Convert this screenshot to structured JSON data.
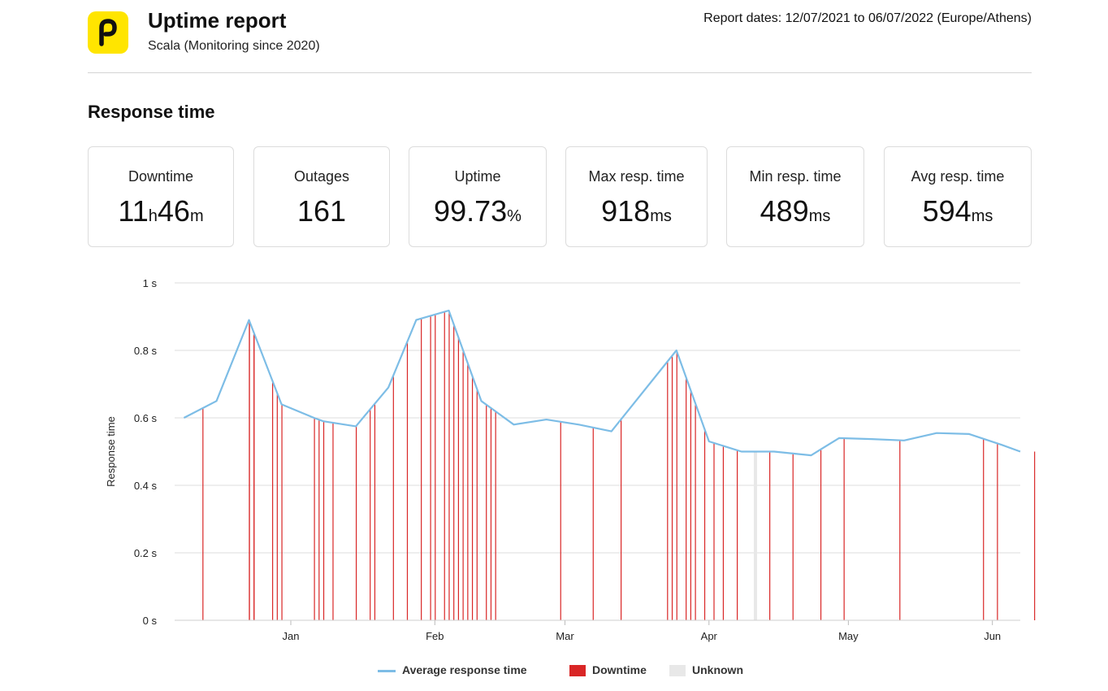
{
  "header": {
    "logo_letter": "p",
    "title": "Uptime report",
    "subtitle": "Scala (Monitoring since 2020)",
    "report_dates": "Report dates: 12/07/2021 to 06/07/2022 (Europe/Athens)"
  },
  "section_title": "Response time",
  "stats": [
    {
      "label": "Downtime",
      "v1": "11",
      "u1": "h",
      "v2": "46",
      "u2": "m"
    },
    {
      "label": "Outages",
      "v1": "161",
      "u1": "",
      "v2": "",
      "u2": ""
    },
    {
      "label": "Uptime",
      "v1": "99.73",
      "u1": "%",
      "v2": "",
      "u2": ""
    },
    {
      "label": "Max resp. time",
      "v1": "918",
      "u1": "ms",
      "v2": "",
      "u2": ""
    },
    {
      "label": "Min resp. time",
      "v1": "489",
      "u1": "ms",
      "v2": "",
      "u2": ""
    },
    {
      "label": "Avg resp. time",
      "v1": "594",
      "u1": "ms",
      "v2": "",
      "u2": ""
    }
  ],
  "colors": {
    "brand_yellow": "#ffe500",
    "line": "#7dbde6",
    "downtime": "#d92626",
    "unknown": "#e8e8e8",
    "grid": "#dddddd"
  },
  "chart_data": {
    "type": "line",
    "ylabel": "Response time",
    "y_ticks": [
      "0 s",
      "0.2 s",
      "0.4 s",
      "0.6 s",
      "0.8 s",
      "1 s"
    ],
    "ylim": [
      0,
      1
    ],
    "x_tick_labels": [
      "Jan",
      "Feb",
      "Mar",
      "Apr",
      "May",
      "Jun"
    ],
    "x_tick_dates": [
      "2022-01-01",
      "2022-02-01",
      "2022-03-01",
      "2022-04-01",
      "2022-05-01",
      "2022-06-01"
    ],
    "xlim": [
      "2021-12-07",
      "2022-06-07"
    ],
    "grid": true,
    "legend_position": "bottom",
    "legend": [
      "Average response time",
      "Downtime",
      "Unknown"
    ],
    "series": [
      {
        "name": "Average response time",
        "points": [
          [
            "2021-12-09",
            0.6
          ],
          [
            "2021-12-16",
            0.65
          ],
          [
            "2021-12-23",
            0.89
          ],
          [
            "2021-12-30",
            0.64
          ],
          [
            "2022-01-06",
            0.6
          ],
          [
            "2022-01-08",
            0.59
          ],
          [
            "2022-01-15",
            0.575
          ],
          [
            "2022-01-22",
            0.69
          ],
          [
            "2022-01-28",
            0.89
          ],
          [
            "2022-02-04",
            0.918
          ],
          [
            "2022-02-11",
            0.65
          ],
          [
            "2022-02-18",
            0.58
          ],
          [
            "2022-02-25",
            0.595
          ],
          [
            "2022-03-04",
            0.58
          ],
          [
            "2022-03-11",
            0.56
          ],
          [
            "2022-03-25",
            0.8
          ],
          [
            "2022-04-01",
            0.53
          ],
          [
            "2022-04-08",
            0.5
          ],
          [
            "2022-04-15",
            0.5
          ],
          [
            "2022-04-23",
            0.489
          ],
          [
            "2022-04-29",
            0.54
          ],
          [
            "2022-05-06",
            0.537
          ],
          [
            "2022-05-13",
            0.533
          ],
          [
            "2022-05-20",
            0.555
          ],
          [
            "2022-05-27",
            0.552
          ],
          [
            "2022-06-03",
            0.52
          ],
          [
            "2022-06-07",
            0.5
          ]
        ]
      }
    ],
    "downtime_dates": [
      "2021-12-13",
      "2021-12-23",
      "2021-12-23",
      "2021-12-24",
      "2021-12-24",
      "2021-12-28",
      "2021-12-29",
      "2021-12-30",
      "2022-01-06",
      "2022-01-07",
      "2022-01-08",
      "2022-01-10",
      "2022-01-15",
      "2022-01-18",
      "2022-01-19",
      "2022-01-23",
      "2022-01-26",
      "2022-01-29",
      "2022-01-31",
      "2022-02-01",
      "2022-02-03",
      "2022-02-04",
      "2022-02-05",
      "2022-02-06",
      "2022-02-07",
      "2022-02-08",
      "2022-02-09",
      "2022-02-10",
      "2022-02-12",
      "2022-02-13",
      "2022-02-14",
      "2022-02-28",
      "2022-03-07",
      "2022-03-13",
      "2022-03-23",
      "2022-03-24",
      "2022-03-25",
      "2022-03-27",
      "2022-03-28",
      "2022-03-29",
      "2022-03-31",
      "2022-04-02",
      "2022-04-04",
      "2022-04-07",
      "2022-04-14",
      "2022-04-19",
      "2022-04-25",
      "2022-04-30",
      "2022-05-12",
      "2022-05-30",
      "2022-06-02",
      "2022-06-10"
    ],
    "unknown_dates": [
      "2022-04-11"
    ]
  }
}
